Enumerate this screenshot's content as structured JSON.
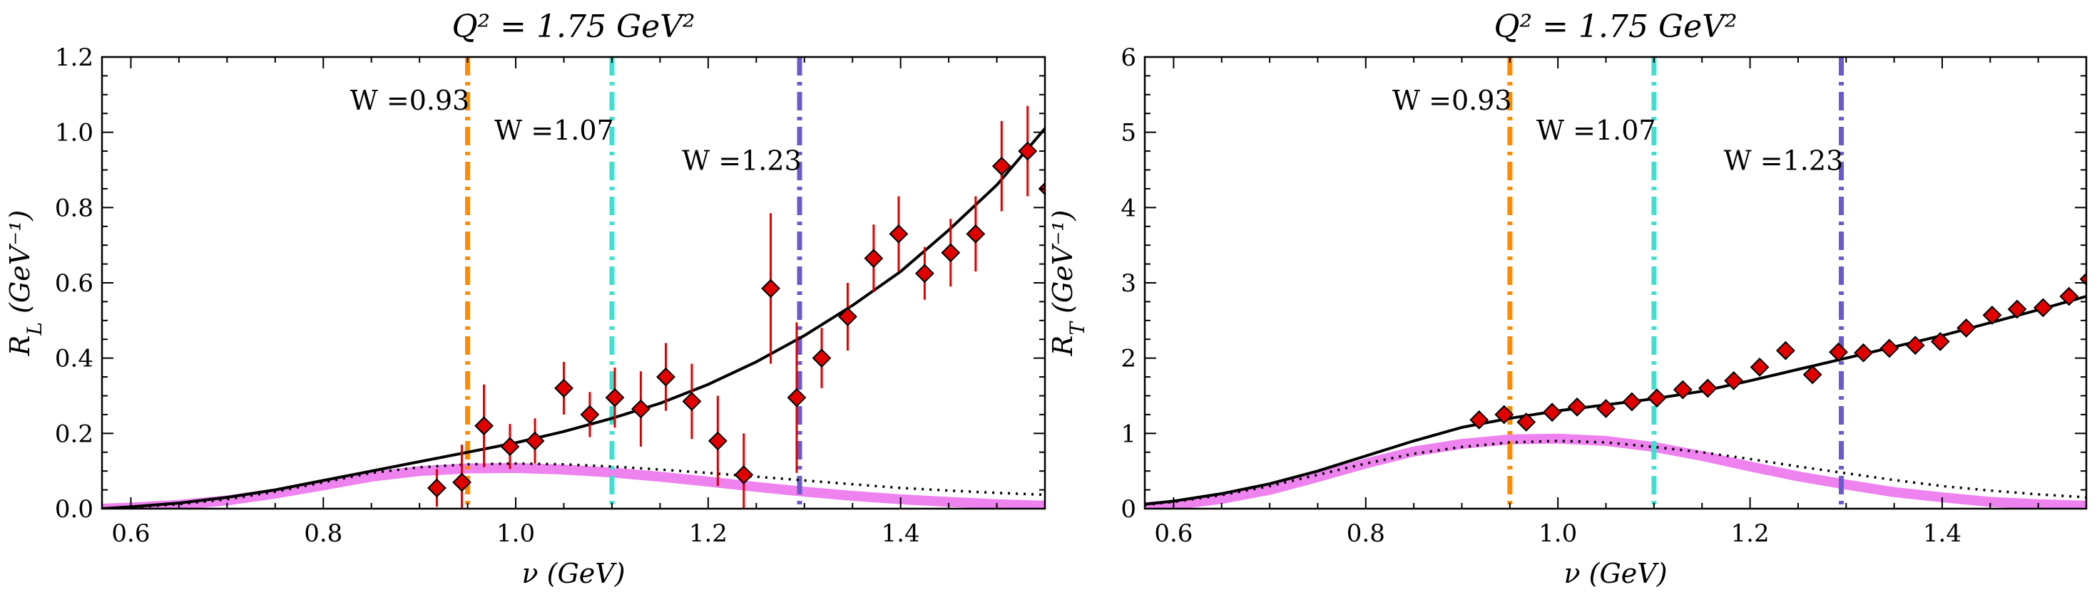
{
  "chart_data": [
    {
      "type": "scatter",
      "title": "Q² = 1.75 GeV²",
      "xlabel": "ν (GeV)",
      "ylabel": "R_L (GeV⁻¹)",
      "xlim": [
        0.57,
        1.55
      ],
      "ylim": [
        0,
        1.2
      ],
      "xticks": [
        0.6,
        0.8,
        1.0,
        1.2,
        1.4
      ],
      "xtick_labels": [
        "0.6",
        "0.8",
        "1.0",
        "1.2",
        "1.4"
      ],
      "yticks": [
        0,
        0.2,
        0.4,
        0.6,
        0.8,
        1.0,
        1.2
      ],
      "ytick_labels": [
        "0.0",
        "0.2",
        "0.4",
        "0.6",
        "0.8",
        "1.0",
        "1.2"
      ],
      "grid": false,
      "vlines": [
        {
          "x": 0.95,
          "label": "W =0.93",
          "color": "#ff8c00",
          "label_x": 0.955,
          "label_y": 1.06
        },
        {
          "x": 1.1,
          "label": "W =1.07",
          "color": "#40e0d0",
          "label_x": 1.105,
          "label_y": 0.98
        },
        {
          "x": 1.295,
          "label": "W =1.23",
          "color": "#6a5acd",
          "label_x": 1.3,
          "label_y": 0.9
        }
      ],
      "series": [
        {
          "kind": "points",
          "x": [
            0.918,
            0.944,
            0.967,
            0.994,
            1.02,
            1.05,
            1.077,
            1.103,
            1.13,
            1.156,
            1.183,
            1.21,
            1.237,
            1.265,
            1.292,
            1.318,
            1.345,
            1.372,
            1.398,
            1.425,
            1.452,
            1.478,
            1.505,
            1.532,
            1.553
          ],
          "y": [
            0.055,
            0.07,
            0.22,
            0.165,
            0.18,
            0.32,
            0.25,
            0.295,
            0.265,
            0.35,
            0.285,
            0.18,
            0.09,
            0.585,
            0.295,
            0.4,
            0.51,
            0.665,
            0.73,
            0.625,
            0.68,
            0.73,
            0.91,
            0.95,
            0.85
          ],
          "yerr": [
            0.05,
            0.1,
            0.11,
            0.06,
            0.06,
            0.07,
            0.06,
            0.08,
            0.1,
            0.09,
            0.1,
            0.12,
            0.11,
            0.2,
            0.2,
            0.08,
            0.09,
            0.09,
            0.1,
            0.07,
            0.09,
            0.1,
            0.12,
            0.12,
            0.12
          ],
          "color": "#e00000"
        },
        {
          "kind": "line",
          "style": "solid",
          "color": "#000000",
          "x": [
            0.57,
            0.6,
            0.65,
            0.7,
            0.75,
            0.8,
            0.85,
            0.9,
            0.95,
            1.0,
            1.05,
            1.1,
            1.15,
            1.2,
            1.25,
            1.3,
            1.35,
            1.4,
            1.45,
            1.5,
            1.55
          ],
          "y": [
            0.0,
            0.005,
            0.015,
            0.03,
            0.05,
            0.075,
            0.1,
            0.125,
            0.15,
            0.175,
            0.205,
            0.24,
            0.28,
            0.33,
            0.39,
            0.46,
            0.54,
            0.63,
            0.74,
            0.86,
            1.01
          ]
        },
        {
          "kind": "line",
          "style": "dotted",
          "color": "#000000",
          "x": [
            0.57,
            0.6,
            0.65,
            0.7,
            0.75,
            0.8,
            0.85,
            0.9,
            0.95,
            1.0,
            1.05,
            1.1,
            1.15,
            1.2,
            1.25,
            1.3,
            1.35,
            1.4,
            1.45,
            1.5,
            1.55
          ],
          "y": [
            0.0,
            0.003,
            0.012,
            0.025,
            0.045,
            0.07,
            0.095,
            0.11,
            0.118,
            0.12,
            0.118,
            0.112,
            0.104,
            0.095,
            0.085,
            0.075,
            0.065,
            0.055,
            0.048,
            0.042,
            0.037
          ]
        },
        {
          "kind": "band",
          "color": "#ee82ee",
          "x": [
            0.57,
            0.6,
            0.65,
            0.7,
            0.75,
            0.8,
            0.85,
            0.9,
            0.95,
            1.0,
            1.05,
            1.1,
            1.15,
            1.2,
            1.25,
            1.3,
            1.35,
            1.4,
            1.45,
            1.5,
            1.55
          ],
          "y": [
            0.0,
            0.003,
            0.01,
            0.022,
            0.04,
            0.062,
            0.085,
            0.1,
            0.107,
            0.108,
            0.104,
            0.096,
            0.085,
            0.072,
            0.058,
            0.045,
            0.034,
            0.025,
            0.018,
            0.012,
            0.008
          ]
        }
      ]
    },
    {
      "type": "scatter",
      "title": "Q² = 1.75 GeV²",
      "xlabel": "ν (GeV)",
      "ylabel": "R_T (GeV⁻¹)",
      "xlim": [
        0.57,
        1.55
      ],
      "ylim": [
        0,
        6
      ],
      "xticks": [
        0.6,
        0.8,
        1.0,
        1.2,
        1.4
      ],
      "xtick_labels": [
        "0.6",
        "0.8",
        "1.0",
        "1.2",
        "1.4"
      ],
      "yticks": [
        0,
        1,
        2,
        3,
        4,
        5,
        6
      ],
      "ytick_labels": [
        "0",
        "1",
        "2",
        "3",
        "4",
        "5",
        "6"
      ],
      "grid": false,
      "vlines": [
        {
          "x": 0.95,
          "label": "W =0.93",
          "color": "#ff8c00",
          "label_x": 0.955,
          "label_y": 5.3
        },
        {
          "x": 1.1,
          "label": "W =1.07",
          "color": "#40e0d0",
          "label_x": 1.105,
          "label_y": 4.9
        },
        {
          "x": 1.295,
          "label": "W =1.23",
          "color": "#6a5acd",
          "label_x": 1.3,
          "label_y": 4.5
        }
      ],
      "series": [
        {
          "kind": "points",
          "x": [
            0.918,
            0.944,
            0.967,
            0.994,
            1.02,
            1.05,
            1.077,
            1.103,
            1.13,
            1.156,
            1.183,
            1.21,
            1.237,
            1.265,
            1.292,
            1.318,
            1.345,
            1.372,
            1.398,
            1.425,
            1.452,
            1.478,
            1.505,
            1.532,
            1.553
          ],
          "y": [
            1.18,
            1.25,
            1.15,
            1.28,
            1.35,
            1.33,
            1.42,
            1.47,
            1.58,
            1.6,
            1.7,
            1.88,
            2.1,
            1.78,
            2.08,
            2.07,
            2.13,
            2.17,
            2.22,
            2.4,
            2.57,
            2.65,
            2.67,
            2.82,
            3.05
          ],
          "yerr": [
            0.06,
            0.06,
            0.06,
            0.06,
            0.06,
            0.06,
            0.06,
            0.06,
            0.07,
            0.07,
            0.07,
            0.08,
            0.08,
            0.1,
            0.09,
            0.08,
            0.08,
            0.08,
            0.08,
            0.08,
            0.08,
            0.08,
            0.08,
            0.08,
            0.09
          ],
          "color": "#e00000"
        },
        {
          "kind": "line",
          "style": "solid",
          "color": "#000000",
          "x": [
            0.57,
            0.6,
            0.65,
            0.7,
            0.75,
            0.8,
            0.85,
            0.9,
            0.95,
            1.0,
            1.05,
            1.1,
            1.15,
            1.2,
            1.25,
            1.3,
            1.35,
            1.4,
            1.45,
            1.5,
            1.55
          ],
          "y": [
            0.06,
            0.1,
            0.2,
            0.33,
            0.5,
            0.7,
            0.9,
            1.08,
            1.2,
            1.3,
            1.38,
            1.46,
            1.56,
            1.7,
            1.85,
            2.0,
            2.15,
            2.3,
            2.47,
            2.64,
            2.82
          ]
        },
        {
          "kind": "line",
          "style": "dotted",
          "color": "#000000",
          "x": [
            0.57,
            0.6,
            0.65,
            0.7,
            0.75,
            0.8,
            0.85,
            0.9,
            0.95,
            1.0,
            1.05,
            1.1,
            1.15,
            1.2,
            1.25,
            1.3,
            1.35,
            1.4,
            1.45,
            1.5,
            1.55
          ],
          "y": [
            0.05,
            0.09,
            0.18,
            0.3,
            0.45,
            0.6,
            0.73,
            0.82,
            0.88,
            0.9,
            0.88,
            0.82,
            0.75,
            0.66,
            0.56,
            0.47,
            0.38,
            0.3,
            0.24,
            0.19,
            0.15
          ]
        },
        {
          "kind": "band",
          "color": "#ee82ee",
          "x": [
            0.57,
            0.6,
            0.65,
            0.7,
            0.75,
            0.8,
            0.85,
            0.9,
            0.95,
            1.0,
            1.05,
            1.1,
            1.15,
            1.2,
            1.25,
            1.3,
            1.35,
            1.4,
            1.45,
            1.5,
            1.55
          ],
          "y": [
            0.02,
            0.05,
            0.13,
            0.25,
            0.42,
            0.6,
            0.76,
            0.86,
            0.92,
            0.93,
            0.9,
            0.82,
            0.7,
            0.56,
            0.43,
            0.32,
            0.22,
            0.15,
            0.09,
            0.06,
            0.04
          ]
        }
      ]
    }
  ]
}
